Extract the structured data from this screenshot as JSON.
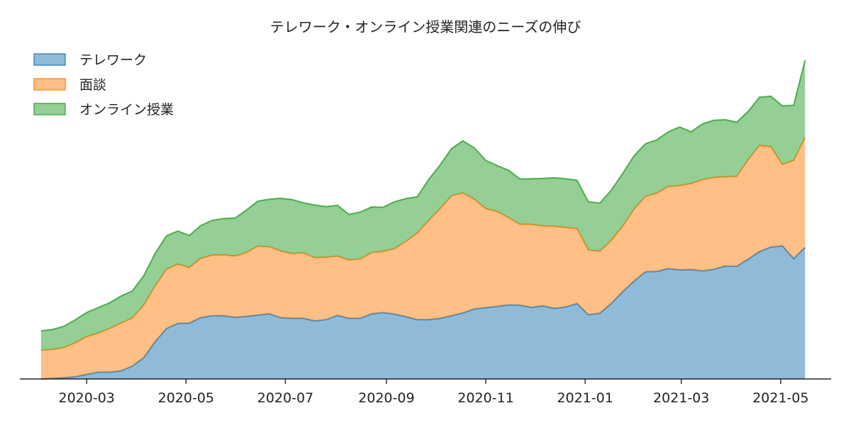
{
  "chart_data": {
    "type": "area",
    "stacked": true,
    "title": "テレワーク・オンライン授業関連のニーズの伸び",
    "xlabel": "",
    "ylabel": "",
    "legend_position": "top-left",
    "grid": false,
    "y_axis_visible": false,
    "ylim": [
      0,
      100
    ],
    "x_ticks": [
      "2020-03-01",
      "2020-05-01",
      "2020-07-01",
      "2020-09-01",
      "2020-11-01",
      "2021-01-01",
      "2021-03-01",
      "2021-05-01"
    ],
    "x_tick_labels": [
      "2020-03",
      "2020-05",
      "2020-07",
      "2020-09",
      "2020-11",
      "2021-01",
      "2021-03",
      "2021-05"
    ],
    "x_range": [
      "2020-01-20",
      "2021-06-01"
    ],
    "x": [
      "2020-02-02",
      "2020-02-09",
      "2020-02-16",
      "2020-02-23",
      "2020-03-01",
      "2020-03-08",
      "2020-03-15",
      "2020-03-22",
      "2020-03-29",
      "2020-04-05",
      "2020-04-12",
      "2020-04-19",
      "2020-04-26",
      "2020-05-03",
      "2020-05-10",
      "2020-05-17",
      "2020-05-24",
      "2020-05-31",
      "2020-06-07",
      "2020-06-14",
      "2020-06-21",
      "2020-06-28",
      "2020-07-05",
      "2020-07-12",
      "2020-07-19",
      "2020-07-26",
      "2020-08-02",
      "2020-08-09",
      "2020-08-16",
      "2020-08-23",
      "2020-08-30",
      "2020-09-06",
      "2020-09-13",
      "2020-09-20",
      "2020-09-27",
      "2020-10-04",
      "2020-10-11",
      "2020-10-18",
      "2020-10-25",
      "2020-11-01",
      "2020-11-08",
      "2020-11-15",
      "2020-11-22",
      "2020-11-29",
      "2020-12-06",
      "2020-12-13",
      "2020-12-20",
      "2020-12-27",
      "2021-01-03",
      "2021-01-10",
      "2021-01-17",
      "2021-01-24",
      "2021-01-31",
      "2021-02-07",
      "2021-02-14",
      "2021-02-21",
      "2021-02-28",
      "2021-03-07",
      "2021-03-14",
      "2021-03-21",
      "2021-03-28",
      "2021-04-04",
      "2021-04-11",
      "2021-04-18",
      "2021-04-25",
      "2021-05-02",
      "2021-05-09",
      "2021-05-16"
    ],
    "series": [
      {
        "name": "テレワーク",
        "color": "#1f77b4",
        "values": [
          0,
          0.2,
          0.4,
          0.7,
          1.4,
          2.1,
          2.1,
          2.5,
          4.0,
          6.6,
          11.6,
          15.7,
          17.3,
          17.4,
          19.1,
          19.7,
          19.7,
          19.2,
          19.5,
          19.9,
          20.3,
          19.1,
          18.9,
          18.9,
          18.1,
          18.5,
          19.8,
          18.9,
          18.9,
          20.3,
          20.7,
          20.2,
          19.4,
          18.5,
          18.5,
          18.9,
          19.7,
          20.6,
          21.8,
          22.2,
          22.6,
          23.1,
          23.0,
          22.3,
          22.8,
          22.0,
          22.4,
          23.5,
          20.0,
          20.5,
          23.5,
          27.2,
          30.5,
          33.4,
          33.5,
          34.4,
          34.0,
          34.1,
          33.7,
          34.2,
          35.2,
          35.1,
          37.3,
          39.7,
          41.1,
          41.5,
          37.5,
          41.0
        ]
      },
      {
        "name": "面談",
        "color": "#ff7f0e",
        "values": [
          9.0,
          9.0,
          9.4,
          10.6,
          11.8,
          12.2,
          13.6,
          14.9,
          15.0,
          16.4,
          17.3,
          18.5,
          18.5,
          17.3,
          18.5,
          18.9,
          19.0,
          19.1,
          19.9,
          21.5,
          20.9,
          20.8,
          20.2,
          20.4,
          19.7,
          19.4,
          18.5,
          18.2,
          18.5,
          19.1,
          19.1,
          20.4,
          23.5,
          27.0,
          30.9,
          34.2,
          37.4,
          37.4,
          34.2,
          30.9,
          29.6,
          27.2,
          25.2,
          25.9,
          24.9,
          25.6,
          24.8,
          23.4,
          20.2,
          19.3,
          19.7,
          20.4,
          22.4,
          23.5,
          24.4,
          25.6,
          26.3,
          26.8,
          28.4,
          28.6,
          27.8,
          28.0,
          31.0,
          33.1,
          31.3,
          25.4,
          30.6,
          34.2
        ]
      },
      {
        "name": "オンライン授業",
        "color": "#2ca02c",
        "values": [
          6.0,
          6.2,
          6.6,
          7.1,
          7.5,
          7.9,
          8.0,
          8.4,
          8.4,
          9.1,
          10.2,
          10.4,
          10.3,
          10.0,
          10.2,
          10.8,
          11.3,
          11.8,
          13.2,
          14.0,
          14.8,
          16.4,
          16.8,
          15.6,
          16.4,
          15.8,
          15.8,
          14.2,
          14.6,
          14.2,
          13.7,
          14.6,
          13.3,
          11.3,
          12.8,
          13.6,
          14.7,
          16.2,
          16.0,
          15.0,
          14.3,
          14.7,
          14.1,
          14.2,
          14.8,
          15.1,
          15.2,
          15.0,
          15.0,
          15.0,
          15.6,
          16.4,
          16.6,
          16.4,
          16.6,
          17.0,
          18.2,
          16.1,
          17.4,
          17.8,
          17.8,
          16.9,
          15.0,
          15.0,
          15.7,
          18.2,
          17.2,
          24.1
        ]
      }
    ]
  }
}
